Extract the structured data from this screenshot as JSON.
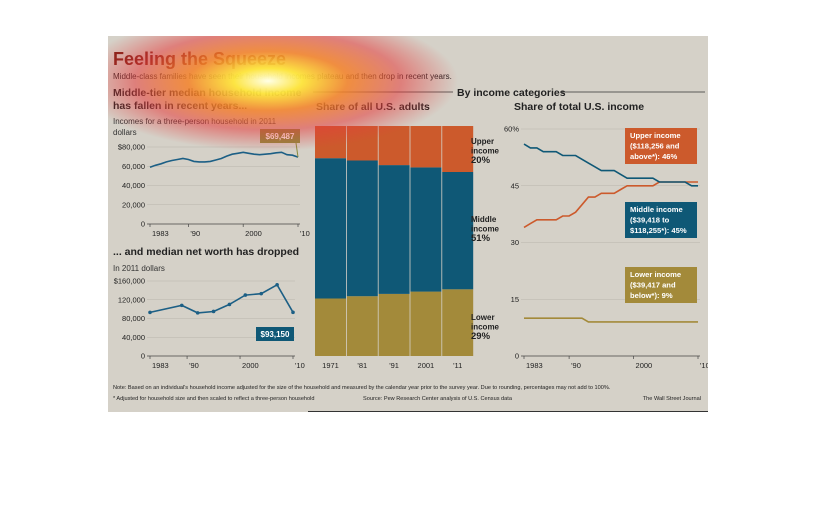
{
  "title": "Feeling the Squeeze",
  "subtitle": "Middle-class families have seen their household incomes plateau and then drop in recent years.",
  "note": "Note: Based on an individual's household income adjusted for the size of the household and measured by the calendar year prior to the survey year. Due to rounding, percentages may not add to 100%.",
  "footnote": "* Adjusted for household size and then scaled to reflect a three-person household",
  "source": "Source: Pew Research Center analysis of U.S. Census data",
  "credit": "The Wall Street Journal",
  "colors": {
    "upper": "#cc5a2c",
    "middle": "#0f5876",
    "lower": "#a38a3a",
    "line_blue": "#1c5f85"
  },
  "chart_data": [
    {
      "type": "line",
      "title": "Middle-tier median household income has fallen in recent years...",
      "subtitle": "Incomes for a three-person household in 2011 dollars",
      "x": [
        1983,
        1984,
        1985,
        1986,
        1987,
        1988,
        1989,
        1990,
        1991,
        1992,
        1993,
        1994,
        1995,
        1996,
        1997,
        1998,
        1999,
        2000,
        2001,
        2002,
        2003,
        2004,
        2005,
        2006,
        2007,
        2008,
        2009,
        2010
      ],
      "values": [
        59000,
        61000,
        62500,
        64500,
        66000,
        67000,
        68000,
        67000,
        65000,
        64500,
        64500,
        65000,
        66500,
        68000,
        70500,
        72500,
        73500,
        74500,
        73500,
        72500,
        72000,
        72500,
        73000,
        74000,
        74500,
        72000,
        71500,
        69487
      ],
      "ylim": [
        0,
        80000
      ],
      "yticks": [
        "$80,000",
        "60,000",
        "40,000",
        "20,000",
        "0"
      ],
      "xticks": [
        "1983",
        "'90",
        "2000",
        "'10"
      ],
      "callout": "$69,487"
    },
    {
      "type": "line",
      "title": "... and median net worth has dropped",
      "subtitle": "In 2011 dollars",
      "x": [
        1983,
        1989,
        1992,
        1995,
        1998,
        2001,
        2004,
        2007,
        2010
      ],
      "values": [
        93000,
        108000,
        92000,
        95000,
        110000,
        130000,
        133000,
        152000,
        93150
      ],
      "ylim": [
        0,
        160000
      ],
      "yticks": [
        "$160,000",
        "120,000",
        "80,000",
        "40,000",
        "0"
      ],
      "xticks": [
        "1983",
        "'90",
        "2000",
        "'10"
      ],
      "callout": "$93,150"
    },
    {
      "type": "bar",
      "title": "Share of all U.S. adults",
      "section_title": "By income categories",
      "categories": [
        "1971",
        "1981",
        "1991",
        "2001",
        "2011"
      ],
      "category_labels": [
        "1971",
        "'81",
        "'91",
        "2001",
        "'11"
      ],
      "series": [
        {
          "name": "Lower income",
          "values": [
            25,
            26,
            27,
            28,
            29
          ]
        },
        {
          "name": "Middle income",
          "values": [
            61,
            59,
            56,
            54,
            51
          ]
        },
        {
          "name": "Upper income",
          "values": [
            14,
            15,
            17,
            18,
            20
          ]
        }
      ],
      "labels": {
        "upper": [
          "Upper",
          "income",
          "20%"
        ],
        "middle": [
          "Middle",
          "income",
          "51%"
        ],
        "lower": [
          "Lower",
          "income",
          "29%"
        ]
      }
    },
    {
      "type": "line",
      "title": "Share of total U.S. income",
      "x": [
        1983,
        1984,
        1985,
        1986,
        1987,
        1988,
        1989,
        1990,
        1991,
        1992,
        1993,
        1994,
        1995,
        1996,
        1997,
        1998,
        1999,
        2000,
        2001,
        2002,
        2003,
        2004,
        2005,
        2006,
        2007,
        2008,
        2009,
        2010
      ],
      "ylim": [
        0,
        60
      ],
      "yticks": [
        "60%",
        "45",
        "30",
        "15",
        "0"
      ],
      "xticks": [
        "1983",
        "'90",
        "2000",
        "'10"
      ],
      "series": [
        {
          "name": "Upper income",
          "values": [
            34,
            35,
            36,
            36,
            36,
            36,
            37,
            37,
            38,
            40,
            42,
            42,
            43,
            43,
            43,
            44,
            45,
            45,
            45,
            45,
            45,
            46,
            46,
            46,
            46,
            46,
            46,
            46
          ],
          "label": [
            "Upper income",
            "($118,256 and",
            "above*): 46%"
          ]
        },
        {
          "name": "Middle income",
          "values": [
            56,
            55,
            55,
            54,
            54,
            54,
            53,
            53,
            53,
            52,
            51,
            50,
            49,
            49,
            49,
            48,
            47,
            47,
            47,
            47,
            47,
            46,
            46,
            46,
            46,
            46,
            45,
            45
          ],
          "label": [
            "Middle income",
            "($39,418 to",
            "$118,255*): 45%"
          ]
        },
        {
          "name": "Lower income",
          "values": [
            10,
            10,
            10,
            10,
            10,
            10,
            10,
            10,
            10,
            10,
            9,
            9,
            9,
            9,
            9,
            9,
            9,
            9,
            9,
            9,
            9,
            9,
            9,
            9,
            9,
            9,
            9,
            9
          ],
          "label": [
            "Lower income",
            "($39,417 and",
            "below*): 9%"
          ]
        }
      ]
    }
  ]
}
